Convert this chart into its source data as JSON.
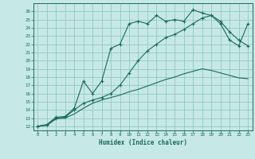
{
  "xlabel": "Humidex (Indice chaleur)",
  "bg_color": "#c6e8e6",
  "grid_color": "#88c4c0",
  "line_color": "#1a6b5a",
  "xlim": [
    -0.5,
    23.5
  ],
  "ylim": [
    11.5,
    27
  ],
  "xticks": [
    0,
    1,
    2,
    3,
    4,
    5,
    6,
    7,
    8,
    9,
    10,
    11,
    12,
    13,
    14,
    15,
    16,
    17,
    18,
    19,
    20,
    21,
    22,
    23
  ],
  "yticks": [
    12,
    13,
    14,
    15,
    16,
    17,
    18,
    19,
    20,
    21,
    22,
    23,
    24,
    25,
    26
  ],
  "line1_x": [
    0,
    1,
    2,
    3,
    4,
    5,
    6,
    7,
    8,
    9,
    10,
    11,
    12,
    13,
    14,
    15,
    16,
    17,
    18,
    19,
    20,
    21,
    22,
    23
  ],
  "line1_y": [
    12,
    12.2,
    13.1,
    13.2,
    14.2,
    17.5,
    16.0,
    17.5,
    21.5,
    22.0,
    24.5,
    24.8,
    24.5,
    25.5,
    24.8,
    25.0,
    24.8,
    26.2,
    25.8,
    25.5,
    24.5,
    22.5,
    21.8,
    24.5
  ],
  "line2_x": [
    0,
    1,
    2,
    3,
    4,
    5,
    6,
    7,
    8,
    9,
    10,
    11,
    12,
    13,
    14,
    15,
    16,
    17,
    18,
    19,
    20,
    21,
    22,
    23
  ],
  "line2_y": [
    12,
    12.2,
    13.0,
    13.1,
    14.0,
    14.8,
    15.2,
    15.5,
    16.0,
    17.0,
    18.5,
    20.0,
    21.2,
    22.0,
    22.8,
    23.2,
    23.8,
    24.5,
    25.2,
    25.5,
    24.8,
    23.5,
    22.5,
    21.8
  ],
  "line3_x": [
    0,
    1,
    2,
    3,
    4,
    5,
    6,
    7,
    8,
    9,
    10,
    11,
    12,
    13,
    14,
    15,
    16,
    17,
    18,
    19,
    20,
    21,
    22,
    23
  ],
  "line3_y": [
    12,
    12.1,
    12.9,
    13.0,
    13.5,
    14.2,
    14.8,
    15.2,
    15.5,
    15.8,
    16.2,
    16.5,
    16.9,
    17.3,
    17.7,
    18.0,
    18.4,
    18.7,
    19.0,
    18.8,
    18.5,
    18.2,
    17.9,
    17.8
  ]
}
